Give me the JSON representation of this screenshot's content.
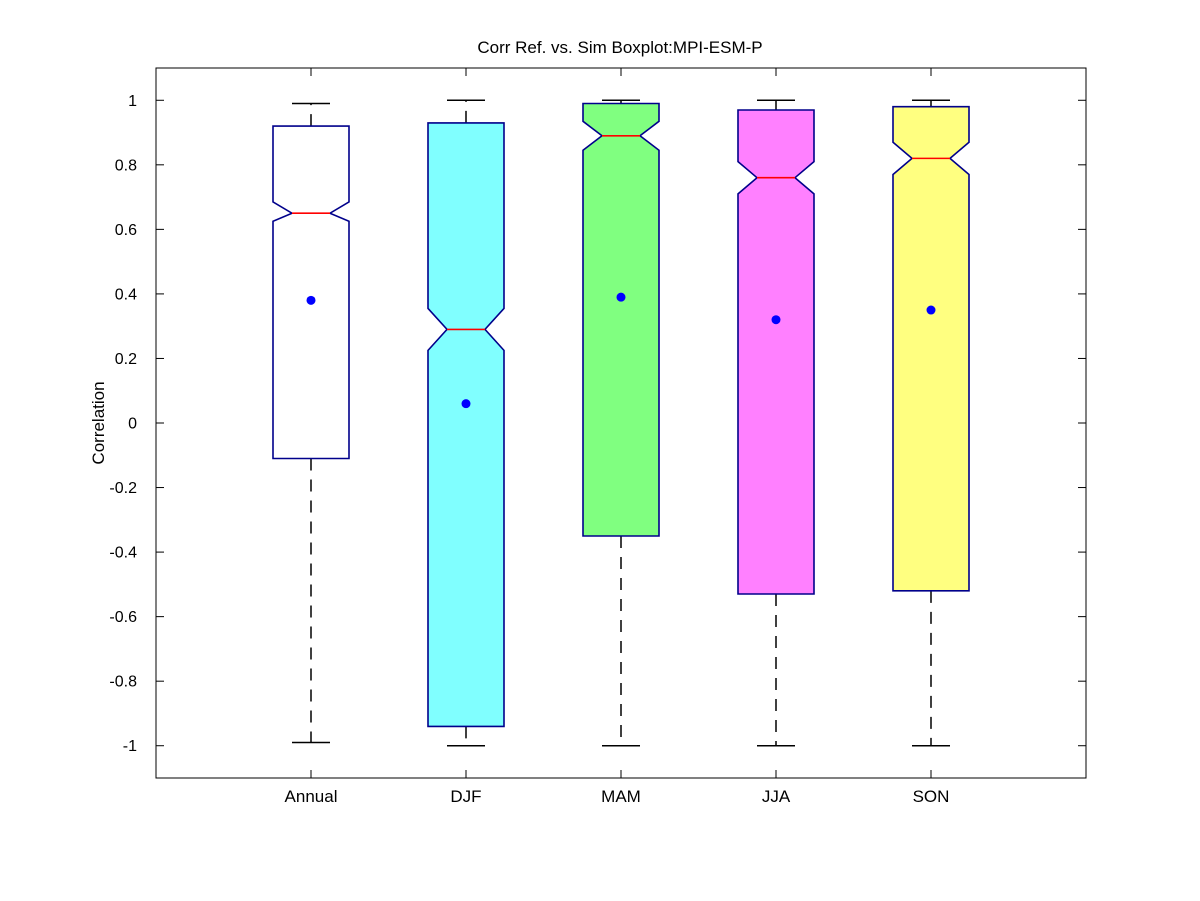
{
  "chart_data": {
    "type": "boxplot",
    "title": "Corr Ref. vs. Sim Boxplot:MPI-ESM-P",
    "xlabel": "",
    "ylabel": "Correlation",
    "ylim": [
      -1.1,
      1.1
    ],
    "yticks": [
      1,
      0.8,
      0.6,
      0.4,
      0.2,
      0,
      -0.2,
      -0.4,
      -0.6,
      -0.8,
      -1
    ],
    "ytick_labels": [
      "1",
      "0.8",
      "0.6",
      "0.4",
      "0.2",
      "0",
      "-0.2",
      "-0.4",
      "-0.6",
      "-0.8",
      "-1"
    ],
    "grid": false,
    "notched": true,
    "categories": [
      "Annual",
      "DJF",
      "MAM",
      "JJA",
      "SON"
    ],
    "boxes": [
      {
        "category": "Annual",
        "whisker_low": -0.99,
        "q1": -0.11,
        "median": 0.65,
        "q3": 0.92,
        "whisker_high": 0.99,
        "notch_low": 0.625,
        "notch_high": 0.685,
        "mean": 0.38,
        "fill": "#ffffff"
      },
      {
        "category": "DJF",
        "whisker_low": -1.0,
        "q1": -0.94,
        "median": 0.29,
        "q3": 0.93,
        "whisker_high": 1.0,
        "notch_low": 0.225,
        "notch_high": 0.355,
        "mean": 0.06,
        "fill": "#80ffff"
      },
      {
        "category": "MAM",
        "whisker_low": -1.0,
        "q1": -0.35,
        "median": 0.89,
        "q3": 0.99,
        "whisker_high": 1.0,
        "notch_low": 0.845,
        "notch_high": 0.935,
        "mean": 0.39,
        "fill": "#80ff80"
      },
      {
        "category": "JJA",
        "whisker_low": -1.0,
        "q1": -0.53,
        "median": 0.76,
        "q3": 0.97,
        "whisker_high": 1.0,
        "notch_low": 0.71,
        "notch_high": 0.81,
        "mean": 0.32,
        "fill": "#ff80ff"
      },
      {
        "category": "SON",
        "whisker_low": -1.0,
        "q1": -0.52,
        "median": 0.82,
        "q3": 0.98,
        "whisker_high": 1.0,
        "notch_low": 0.77,
        "notch_high": 0.87,
        "mean": 0.35,
        "fill": "#ffff80"
      }
    ],
    "colors": {
      "box_edge": "#00008b",
      "median": "#ff0000",
      "mean_marker": "#0000ff",
      "whisker": "#000000",
      "axes": "#000000"
    }
  }
}
